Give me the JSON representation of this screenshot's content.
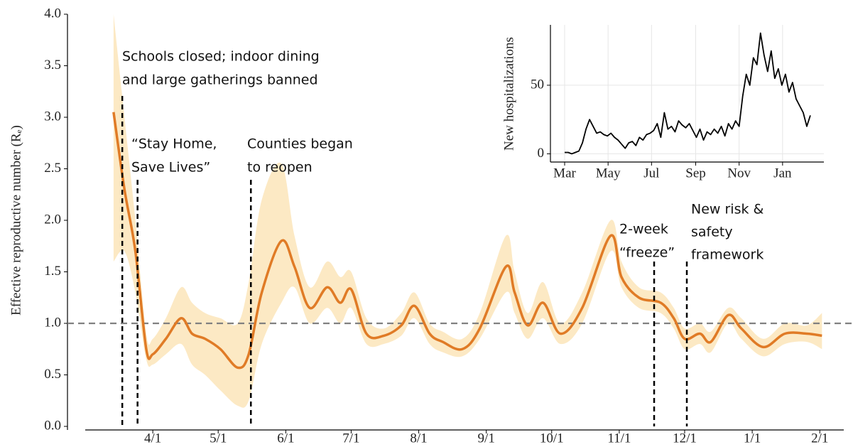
{
  "chart_data": [
    {
      "type": "line",
      "ylabel": "Effective reproductive number (Rₑ)",
      "x": [
        "3/14",
        "3/19",
        "3/24",
        "3/29",
        "4/1",
        "4/7",
        "4/14",
        "4/19",
        "4/25",
        "5/2",
        "5/10",
        "5/15",
        "5/21",
        "5/30",
        "6/5",
        "6/12",
        "6/20",
        "6/26",
        "7/1",
        "7/8",
        "7/16",
        "7/24",
        "7/30",
        "8/6",
        "8/12",
        "8/21",
        "8/29",
        "9/10",
        "9/14",
        "9/20",
        "9/27",
        "10/5",
        "10/15",
        "10/28",
        "11/2",
        "11/10",
        "11/20",
        "11/26",
        "12/1",
        "12/8",
        "12/13",
        "12/21",
        "12/27",
        "1/6",
        "1/16",
        "1/26",
        "2/2"
      ],
      "series": [
        {
          "color": "#e07b26",
          "values": [
            3.05,
            2.3,
            1.7,
            0.75,
            0.7,
            0.85,
            1.05,
            0.9,
            0.85,
            0.75,
            0.57,
            0.7,
            1.3,
            1.8,
            1.55,
            1.15,
            1.35,
            1.2,
            1.33,
            0.9,
            0.88,
            0.98,
            1.17,
            0.9,
            0.82,
            0.75,
            0.95,
            1.55,
            1.3,
            0.98,
            1.2,
            0.9,
            1.15,
            1.85,
            1.45,
            1.25,
            1.2,
            1.05,
            0.85,
            0.9,
            0.82,
            1.08,
            0.95,
            0.77,
            0.9,
            0.9,
            0.88
          ]
        }
      ],
      "band": {
        "color": "#fce9c4",
        "lower": [
          1.6,
          1.7,
          1.3,
          0.65,
          0.6,
          0.7,
          0.8,
          0.6,
          0.5,
          0.35,
          0.2,
          0.25,
          0.8,
          1.2,
          1.35,
          1.0,
          1.15,
          1.0,
          1.15,
          0.8,
          0.8,
          0.88,
          1.05,
          0.8,
          0.72,
          0.68,
          0.85,
          1.3,
          1.1,
          0.85,
          1.05,
          0.8,
          1.0,
          1.7,
          1.35,
          1.15,
          1.1,
          0.95,
          0.75,
          0.8,
          0.72,
          1.0,
          0.85,
          0.68,
          0.8,
          0.82,
          0.75
        ],
        "upper": [
          4.0,
          3.0,
          2.0,
          0.9,
          0.85,
          1.05,
          1.35,
          1.2,
          1.1,
          1.05,
          1.0,
          1.4,
          2.2,
          2.55,
          1.85,
          1.35,
          1.6,
          1.45,
          1.5,
          1.05,
          0.95,
          1.1,
          1.3,
          1.0,
          0.92,
          0.85,
          1.1,
          1.85,
          1.5,
          1.1,
          1.4,
          1.0,
          1.3,
          2.0,
          1.6,
          1.35,
          1.3,
          1.15,
          0.95,
          1.0,
          0.92,
          1.15,
          1.05,
          0.85,
          1.0,
          0.98,
          1.1
        ]
      },
      "hline": {
        "value": 1,
        "color": "#808080"
      },
      "xlim": [
        "3/1",
        "2/12"
      ],
      "ylim": [
        0,
        4
      ],
      "yticks": [
        {
          "value": 0,
          "label": "0.0"
        },
        0.5,
        {
          "value": 1,
          "label": "1.0"
        },
        1.5,
        {
          "value": 2,
          "label": "2.0"
        },
        2.5,
        {
          "value": 3,
          "label": "3.0"
        },
        3.5,
        {
          "value": 4,
          "label": "4.0"
        }
      ],
      "xticks": [
        "4/1",
        "5/1",
        "6/1",
        "7/1",
        "8/1",
        "9/1",
        "10/1",
        "11/1",
        "12/1",
        "1/1",
        "2/1"
      ],
      "grid": false,
      "annotations": [
        {
          "x": "3/18",
          "lines": [
            "Schools closed; indoor dining",
            "and large gatherings banned"
          ]
        },
        {
          "x": "3/25",
          "lines": [
            "“Stay Home,",
            "Save Lives”"
          ]
        },
        {
          "x": "5/16",
          "lines": [
            "Counties began",
            "to reopen"
          ]
        },
        {
          "x": "11/17",
          "lines": [
            "2-week",
            "“freeze”"
          ]
        },
        {
          "x": "12/2",
          "lines": [
            "New risk &",
            "safety",
            "framework"
          ]
        }
      ]
    },
    {
      "type": "line",
      "ylabel": "New hospitalizations",
      "x": [
        "3/1",
        "3/6",
        "3/11",
        "3/16",
        "3/21",
        "3/26",
        "3/31",
        "4/5",
        "4/10",
        "4/15",
        "4/20",
        "4/25",
        "4/30",
        "5/5",
        "5/10",
        "5/15",
        "5/20",
        "5/25",
        "5/30",
        "6/4",
        "6/9",
        "6/14",
        "6/19",
        "6/24",
        "6/29",
        "7/4",
        "7/9",
        "7/14",
        "7/19",
        "7/24",
        "7/29",
        "8/3",
        "8/8",
        "8/13",
        "8/18",
        "8/23",
        "8/28",
        "9/2",
        "9/7",
        "9/12",
        "9/17",
        "9/22",
        "9/27",
        "10/2",
        "10/7",
        "10/12",
        "10/17",
        "10/22",
        "10/27",
        "11/1",
        "11/6",
        "11/11",
        "11/16",
        "11/21",
        "11/26",
        "12/1",
        "12/6",
        "12/11",
        "12/16",
        "12/21",
        "12/26",
        "12/31",
        "1/5",
        "1/10",
        "1/15",
        "1/20",
        "1/25",
        "1/30",
        "2/4",
        "2/9"
      ],
      "series": [
        {
          "color": "#000000",
          "values": [
            1,
            1,
            0,
            1,
            2,
            8,
            18,
            25,
            20,
            15,
            16,
            14,
            13,
            15,
            12,
            10,
            7,
            4,
            8,
            9,
            6,
            12,
            10,
            14,
            15,
            17,
            22,
            12,
            30,
            18,
            20,
            16,
            24,
            21,
            19,
            22,
            17,
            12,
            18,
            10,
            16,
            14,
            18,
            15,
            20,
            13,
            22,
            18,
            24,
            20,
            42,
            58,
            50,
            70,
            65,
            88,
            72,
            60,
            75,
            55,
            62,
            50,
            58,
            45,
            52,
            40,
            35,
            30,
            20,
            28
          ]
        }
      ],
      "xlim": [
        "3/1",
        "2/28"
      ],
      "ylim": [
        -6,
        94
      ],
      "yticks": [
        0,
        50
      ],
      "xticks": [
        {
          "value": "3/1",
          "label": "Mar"
        },
        {
          "value": "5/1",
          "label": "May"
        },
        {
          "value": "7/1",
          "label": "Jul"
        },
        {
          "value": "9/1",
          "label": "Sep"
        },
        {
          "value": "11/1",
          "label": "Nov"
        },
        {
          "value": "1/1",
          "label": "Jan"
        }
      ],
      "grid": true
    }
  ]
}
